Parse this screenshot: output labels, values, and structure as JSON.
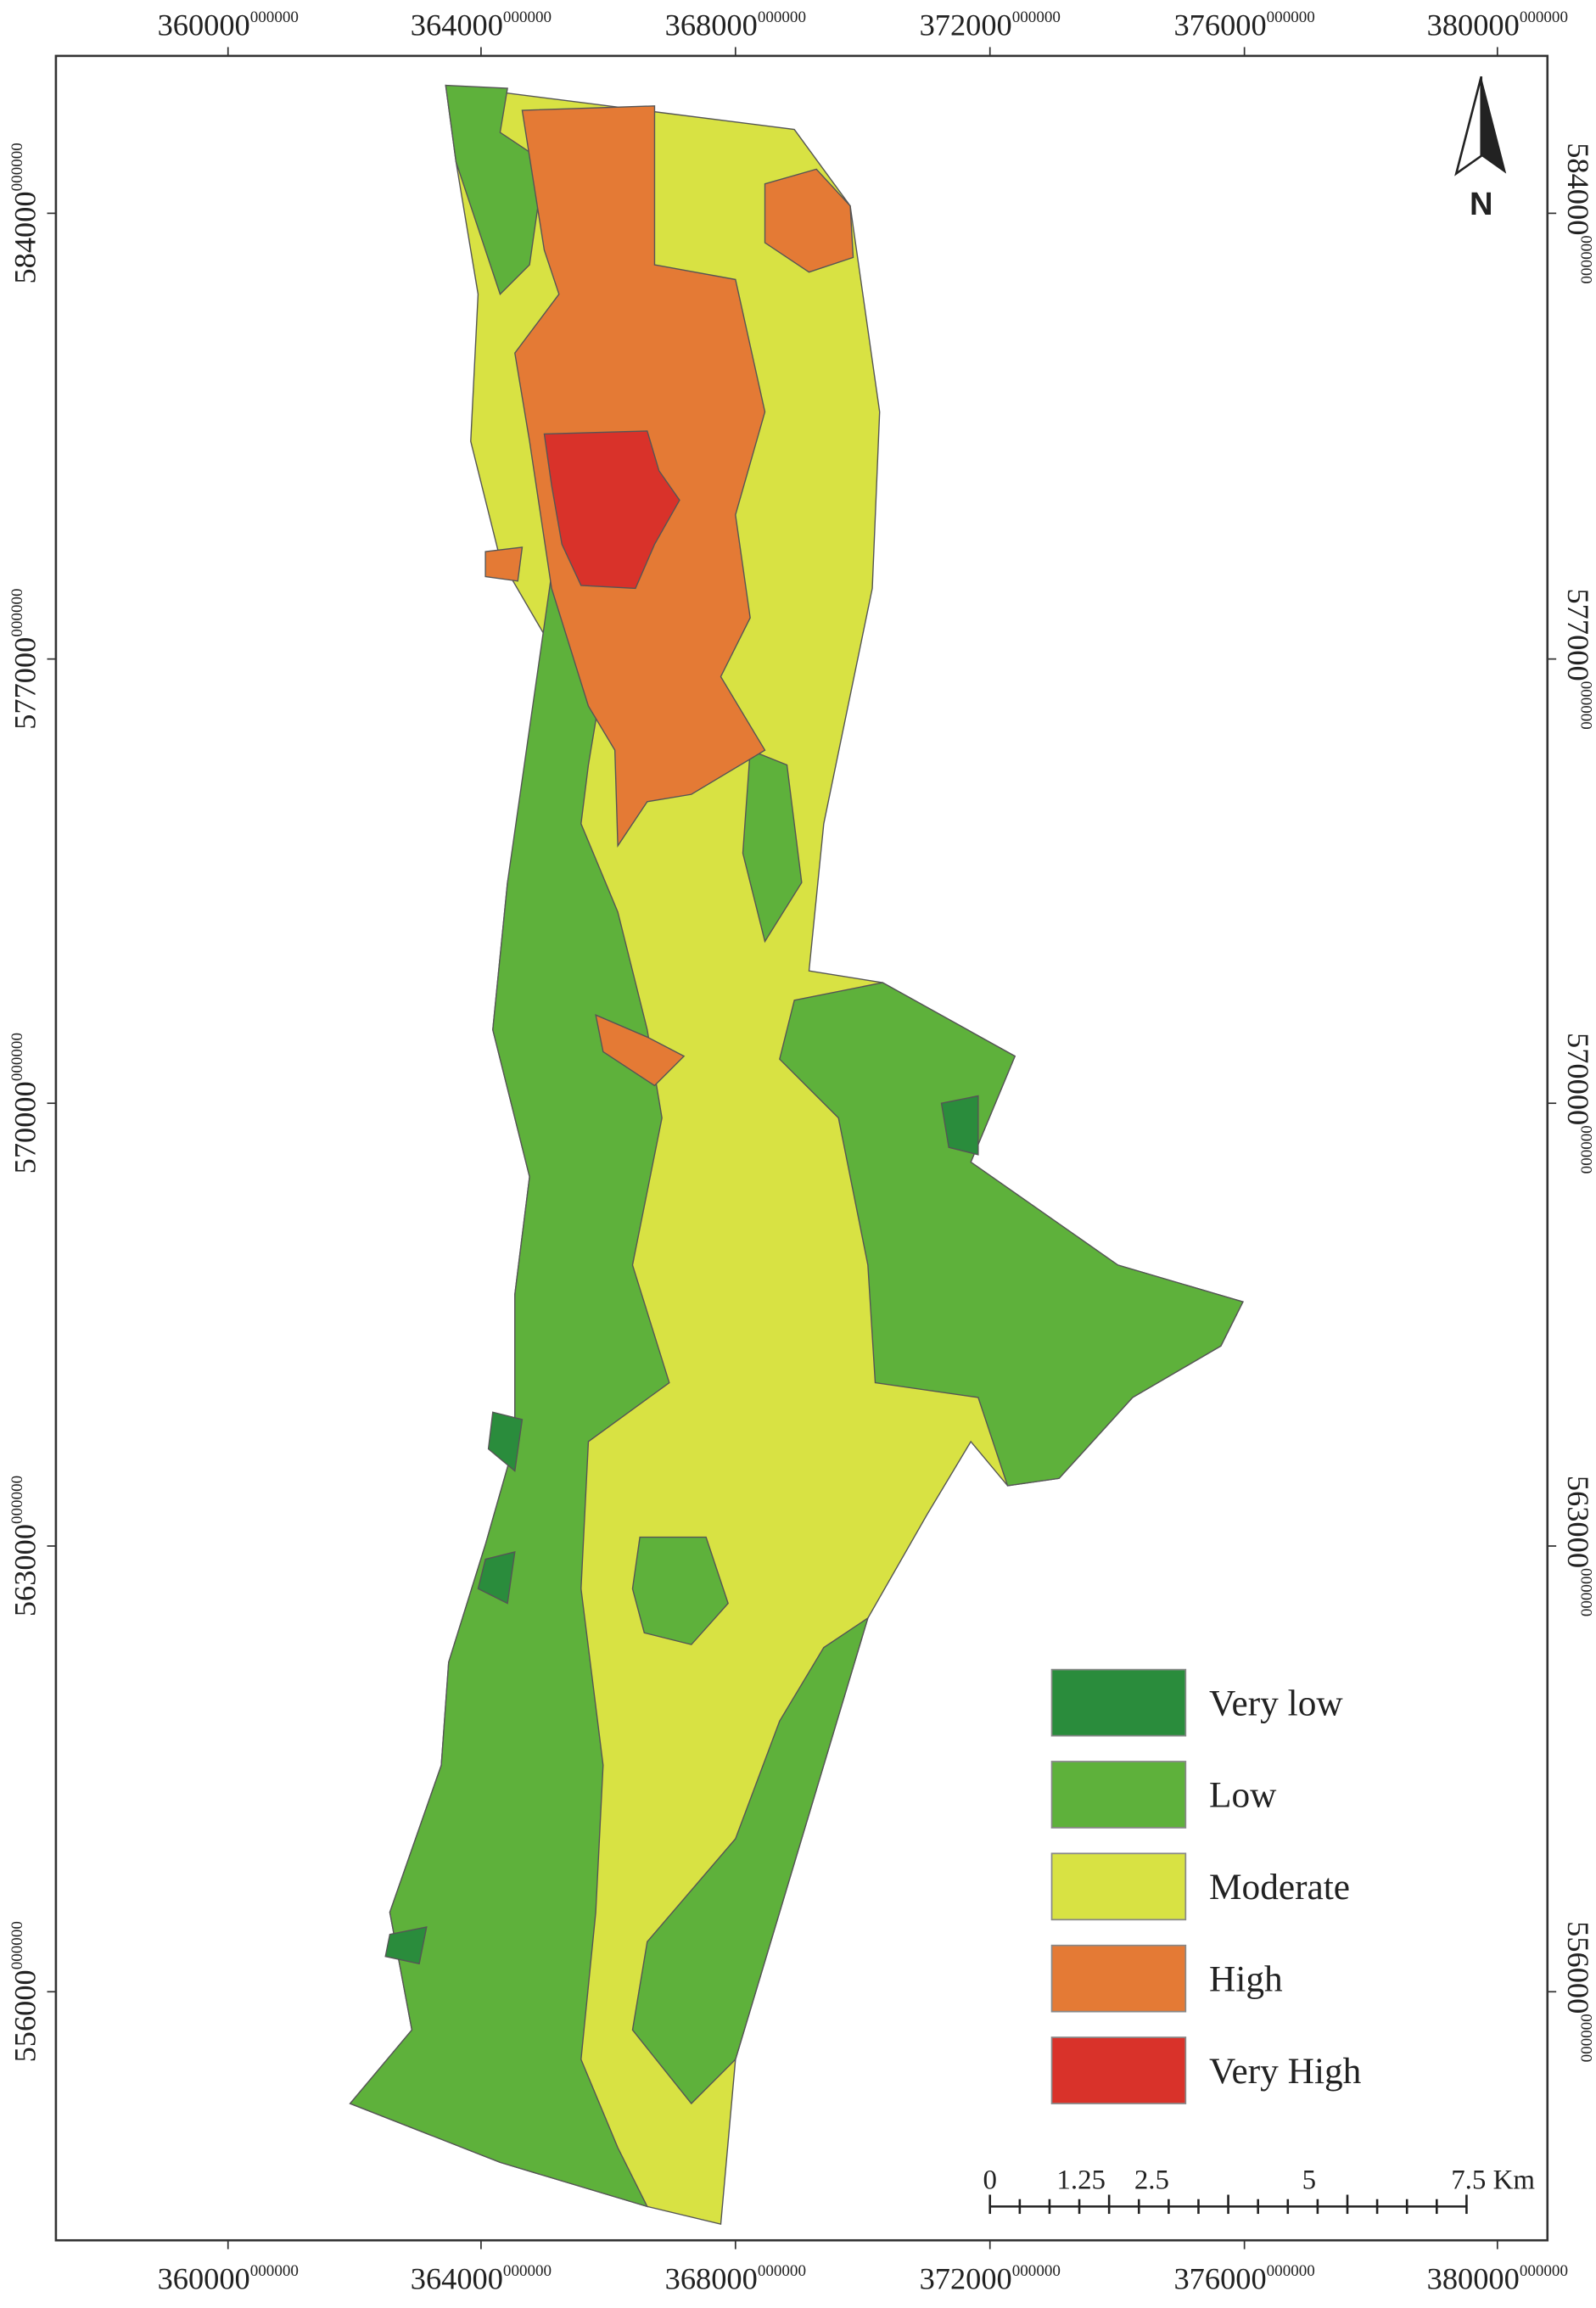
{
  "x_axis": {
    "ticks": [
      {
        "label": "360000",
        "suffix": "000000"
      },
      {
        "label": "364000",
        "suffix": "000000"
      },
      {
        "label": "368000",
        "suffix": "000000"
      },
      {
        "label": "372000",
        "suffix": "000000"
      },
      {
        "label": "376000",
        "suffix": "000000"
      },
      {
        "label": "380000",
        "suffix": "000000"
      }
    ]
  },
  "y_axis": {
    "ticks": [
      {
        "label": "584000",
        "suffix": "000000"
      },
      {
        "label": "577000",
        "suffix": "000000"
      },
      {
        "label": "570000",
        "suffix": "000000"
      },
      {
        "label": "563000",
        "suffix": "000000"
      },
      {
        "label": "556000",
        "suffix": "000000"
      }
    ]
  },
  "north_arrow": "N",
  "legend": [
    {
      "label": "Very low",
      "color": "#2a8c3c"
    },
    {
      "label": "Low",
      "color": "#5eb13b"
    },
    {
      "label": "Moderate",
      "color": "#d8e243"
    },
    {
      "label": "High",
      "color": "#e47a35"
    },
    {
      "label": "Very High",
      "color": "#d9322a"
    }
  ],
  "scale_bar": {
    "labels": [
      "0",
      "1.25",
      "2.5",
      "5",
      "7.5 Km"
    ]
  }
}
